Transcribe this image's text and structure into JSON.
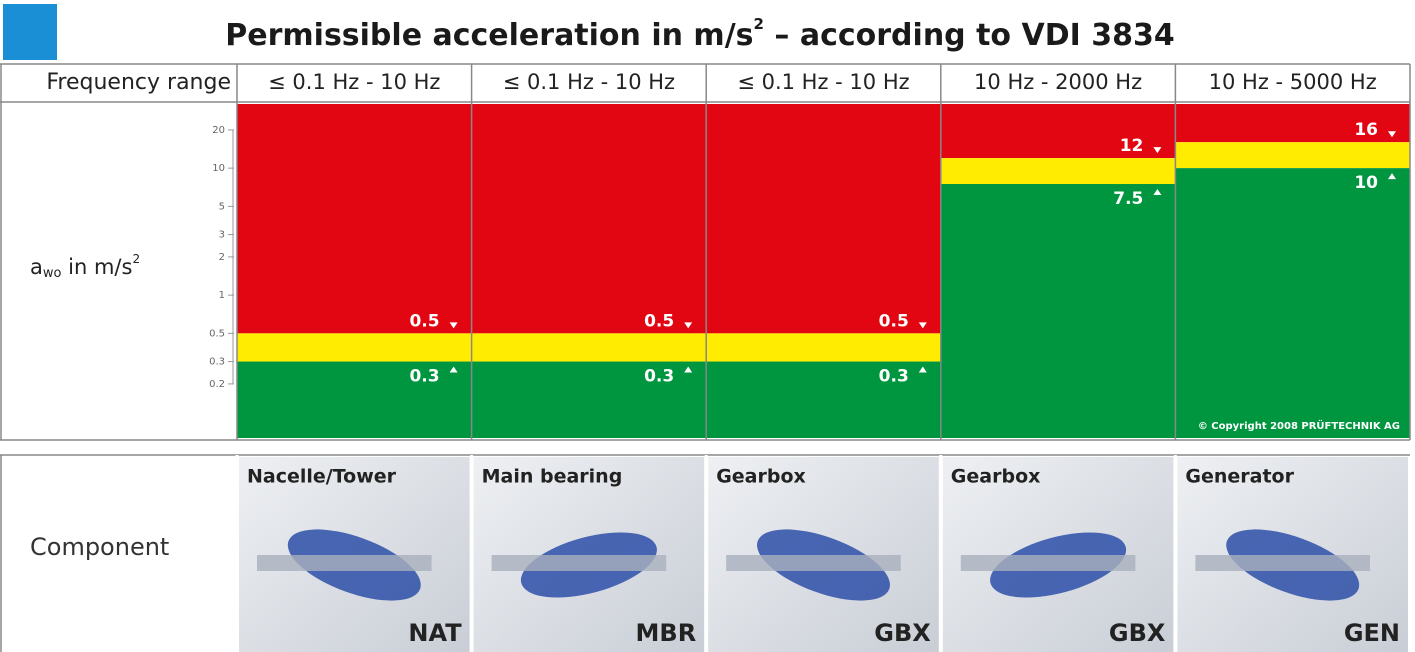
{
  "chart_data": {
    "type": "zone",
    "title": [
      "Permissible acceleration in m/s",
      "2",
      " – according to VDI 3834"
    ],
    "row_label": "Frequency range",
    "ylabel": [
      "a",
      "wo",
      " in m/s",
      "2"
    ],
    "log_y": true,
    "ylim": [
      0.075,
      32
    ],
    "yticks": [
      20,
      10,
      5,
      3,
      2,
      1,
      0.5,
      0.3,
      0.2
    ],
    "colors": {
      "alarm": "#e20613",
      "warning": "#ffec00",
      "ok": "#009640"
    },
    "columns": [
      {
        "frequency": "≤ 0.1 Hz - 10 Hz",
        "alarm": 0.5,
        "warning": 0.3,
        "component": "Nacelle/Tower",
        "code": "NAT"
      },
      {
        "frequency": "≤ 0.1 Hz - 10 Hz",
        "alarm": 0.5,
        "warning": 0.3,
        "component": "Main bearing",
        "code": "MBR"
      },
      {
        "frequency": "≤ 0.1 Hz - 10 Hz",
        "alarm": 0.5,
        "warning": 0.3,
        "component": "Gearbox",
        "code": "GBX"
      },
      {
        "frequency": "10 Hz - 2000 Hz",
        "alarm": 12,
        "warning": 7.5,
        "component": "Gearbox",
        "code": "GBX"
      },
      {
        "frequency": "10 Hz - 5000 Hz",
        "alarm": 16,
        "warning": 10,
        "component": "Generator",
        "code": "GEN"
      }
    ],
    "component_label": "Component",
    "copyright": "© Copyright 2008 PRÜFTECHNIK AG"
  }
}
